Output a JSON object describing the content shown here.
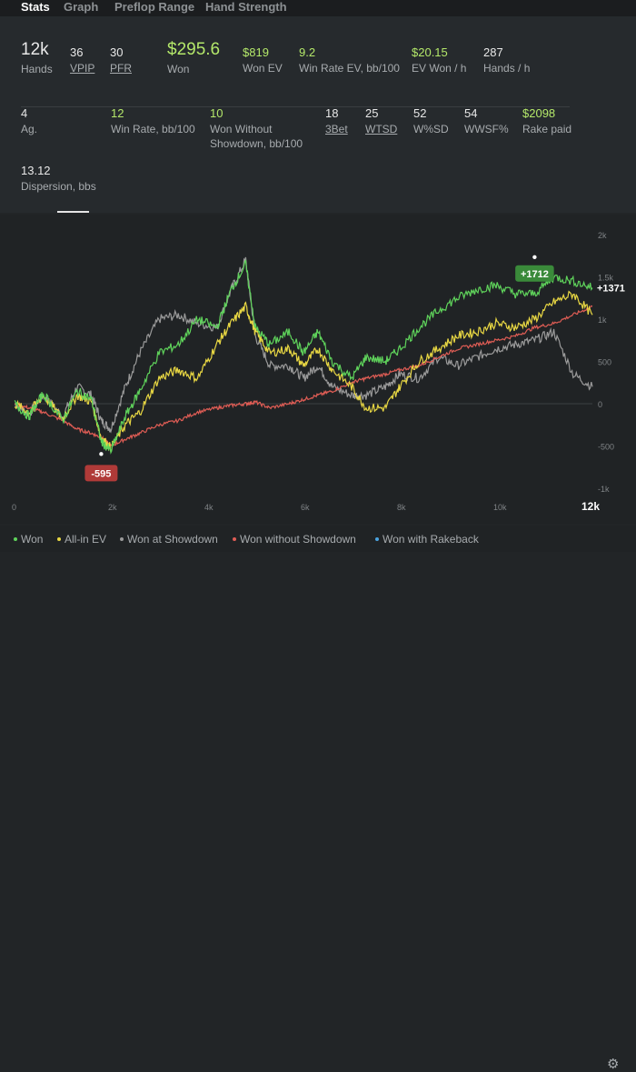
{
  "tabs": [
    {
      "label": "Stats",
      "active": true
    },
    {
      "label": "Graph",
      "active": false
    },
    {
      "label": "Preflop Range",
      "active": false
    },
    {
      "label": "Hand Strength",
      "active": false
    }
  ],
  "stats": {
    "row1": [
      {
        "value": "12k",
        "label": "Hands"
      },
      {
        "value": "36",
        "label": "VPIP"
      },
      {
        "value": "30",
        "label": "PFR"
      },
      {
        "value": "$295.6",
        "label": "Won"
      },
      {
        "value": "$819",
        "label": "Won EV"
      },
      {
        "value": "9.2",
        "label": "Win Rate EV, bb/100"
      },
      {
        "value": "$20.15",
        "label": "EV Won / h"
      },
      {
        "value": "287",
        "label": "Hands / h"
      }
    ],
    "row2": [
      {
        "value": "4",
        "label": "Ag."
      },
      {
        "value": "12",
        "label": "Win Rate, bb/100"
      },
      {
        "value": "10",
        "label": "Won Without",
        "label2": "Showdown, bb/100"
      },
      {
        "value": "18",
        "label": "3Bet"
      },
      {
        "value": "25",
        "label": "WTSD"
      },
      {
        "value": "52",
        "label": "W%SD"
      },
      {
        "value": "54",
        "label": "WWSF%"
      },
      {
        "value": "$2098",
        "label": "Rake paid"
      }
    ],
    "row3": [
      {
        "value": "13.12",
        "label": "Dispersion, bbs"
      }
    ]
  },
  "chart_data": {
    "type": "line",
    "x_ticks": [
      "0",
      "2k",
      "4k",
      "6k",
      "8k",
      "10k",
      "12k"
    ],
    "y_ticks": [
      "2k",
      "1.5k",
      "1k",
      "500",
      "0",
      "-500",
      "-1k"
    ],
    "xlim": [
      0,
      12000
    ],
    "ylim": [
      -1000,
      2000
    ],
    "series": [
      {
        "name": "Won",
        "color": "#5fd35b",
        "x": [
          0,
          300,
          600,
          1000,
          1300,
          1600,
          1800,
          2000,
          2300,
          2600,
          3000,
          3400,
          3800,
          4200,
          4500,
          4800,
          5000,
          5300,
          5700,
          6000,
          6300,
          6600,
          7000,
          7300,
          7700,
          8000,
          8400,
          8800,
          9200,
          9600,
          10000,
          10400,
          10800,
          11200,
          11600,
          12000
        ],
        "y": [
          0,
          -150,
          120,
          -200,
          150,
          50,
          -450,
          -560,
          -150,
          150,
          600,
          700,
          1000,
          900,
          1350,
          1650,
          900,
          700,
          850,
          600,
          850,
          500,
          300,
          550,
          500,
          650,
          900,
          1100,
          1250,
          1350,
          1400,
          1300,
          1300,
          1500,
          1450,
          1370
        ]
      },
      {
        "name": "All-in EV",
        "color": "#e8d743",
        "x": [
          0,
          300,
          600,
          1000,
          1300,
          1600,
          1800,
          2000,
          2300,
          2600,
          3000,
          3400,
          3800,
          4200,
          4500,
          4800,
          5000,
          5300,
          5700,
          6000,
          6300,
          6600,
          7000,
          7300,
          7700,
          8000,
          8400,
          8800,
          9200,
          9600,
          10000,
          10400,
          10800,
          11200,
          11600,
          12000
        ],
        "y": [
          0,
          -100,
          100,
          -180,
          100,
          20,
          -400,
          -520,
          -250,
          -100,
          300,
          400,
          300,
          700,
          950,
          1150,
          850,
          600,
          650,
          450,
          650,
          400,
          200,
          -50,
          -50,
          200,
          500,
          650,
          800,
          850,
          950,
          900,
          1000,
          1200,
          1300,
          1050
        ]
      },
      {
        "name": "Won at Showdown",
        "color": "#9a9a9a",
        "x": [
          0,
          300,
          600,
          1000,
          1300,
          1600,
          1800,
          2000,
          2300,
          2600,
          3000,
          3400,
          3800,
          4200,
          4500,
          4800,
          5000,
          5300,
          5700,
          6000,
          6300,
          6600,
          7000,
          7300,
          7700,
          8000,
          8400,
          8800,
          9200,
          9600,
          10000,
          10400,
          10800,
          11200,
          11600,
          12000
        ],
        "y": [
          0,
          -120,
          100,
          -150,
          200,
          100,
          -200,
          -300,
          200,
          600,
          1000,
          1050,
          950,
          900,
          1350,
          1700,
          800,
          450,
          450,
          300,
          450,
          200,
          100,
          100,
          200,
          350,
          300,
          550,
          450,
          550,
          650,
          700,
          750,
          850,
          350,
          200
        ]
      },
      {
        "name": "Won without Showdown",
        "color": "#e05d55",
        "x": [
          0,
          300,
          600,
          1000,
          1300,
          1600,
          1800,
          2000,
          2300,
          2600,
          3000,
          3400,
          3800,
          4200,
          4500,
          4800,
          5000,
          5300,
          5700,
          6000,
          6300,
          6600,
          7000,
          7300,
          7700,
          8000,
          8400,
          8800,
          9200,
          9600,
          10000,
          10400,
          10800,
          11200,
          11600,
          12000
        ],
        "y": [
          0,
          -50,
          -100,
          -200,
          -300,
          -350,
          -400,
          -500,
          -420,
          -350,
          -250,
          -200,
          -100,
          -50,
          -20,
          0,
          20,
          -50,
          0,
          50,
          100,
          150,
          250,
          300,
          350,
          400,
          450,
          550,
          650,
          700,
          750,
          800,
          900,
          950,
          1050,
          1150
        ]
      },
      {
        "name": "Won with Rakeback",
        "color": "#4aa3df",
        "x": [],
        "y": []
      }
    ],
    "annotations": [
      {
        "text": "+1712",
        "x": 10800,
        "y": 1712,
        "color": "#3a8a3a"
      },
      {
        "text": "-595",
        "x": 1800,
        "y": -595,
        "color": "#b03a38"
      },
      {
        "text": "+1371",
        "x": 12000,
        "y": 1371,
        "color": "#ffffff"
      }
    ]
  },
  "legend": [
    {
      "label": "Won",
      "color": "#5fd35b"
    },
    {
      "label": "All-in EV",
      "color": "#e8d743"
    },
    {
      "label": "Won at Showdown",
      "color": "#9a9a9a"
    },
    {
      "label": "Won without Showdown",
      "color": "#e05d55"
    },
    {
      "label": "Won with Rakeback",
      "color": "#4aa3df"
    }
  ],
  "settings_icon": "gear-icon"
}
